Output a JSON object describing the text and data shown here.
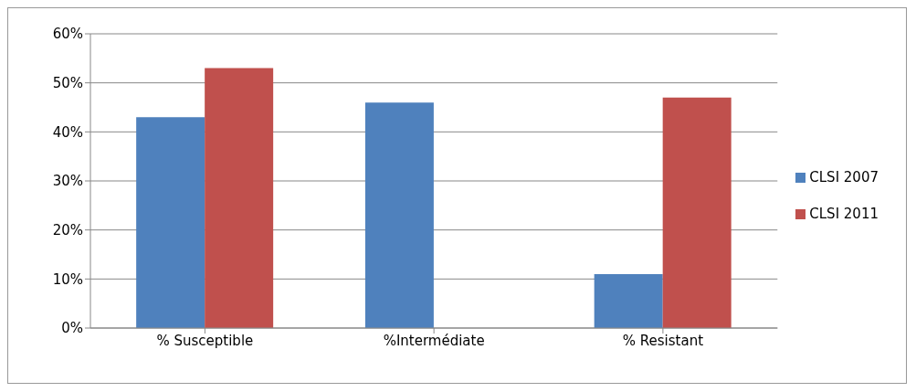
{
  "chart_data": {
    "type": "bar",
    "categories": [
      "% Susceptible",
      "%Intermédiate",
      "% Resistant"
    ],
    "series": [
      {
        "name": "CLSI 2007",
        "color": "#4f81bd",
        "values": [
          43,
          46,
          11
        ]
      },
      {
        "name": "CLSI 2011",
        "color": "#c0504d",
        "values": [
          53,
          0,
          47
        ]
      }
    ],
    "ylim": [
      0,
      60
    ],
    "yticks": [
      {
        "value": 0,
        "label": "0%"
      },
      {
        "value": 10,
        "label": "10%"
      },
      {
        "value": 20,
        "label": "20%"
      },
      {
        "value": 30,
        "label": "30%"
      },
      {
        "value": 40,
        "label": "40%"
      },
      {
        "value": 50,
        "label": "50%"
      },
      {
        "value": 60,
        "label": "60%"
      }
    ],
    "grid": "y",
    "legend": "right"
  }
}
